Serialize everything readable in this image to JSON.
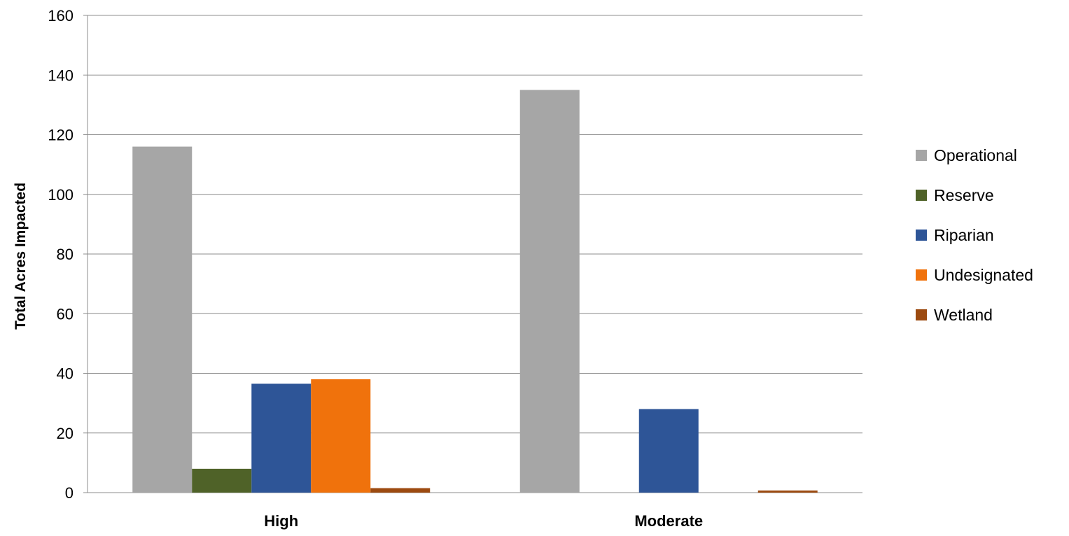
{
  "chart_data": {
    "type": "bar",
    "title": "",
    "xlabel": "",
    "ylabel": "Total Acres Impacted",
    "ylim": [
      0,
      160
    ],
    "yticks": [
      0,
      20,
      40,
      60,
      80,
      100,
      120,
      140,
      160
    ],
    "grid": true,
    "legend_position": "right",
    "categories": [
      "High",
      "Moderate"
    ],
    "series": [
      {
        "name": "Operational",
        "color": "#A6A6A6",
        "values": [
          116,
          135
        ]
      },
      {
        "name": "Reserve",
        "color": "#4F6228",
        "values": [
          8,
          0
        ]
      },
      {
        "name": "Riparian",
        "color": "#2E5597",
        "values": [
          36.5,
          28
        ]
      },
      {
        "name": "Undesignated",
        "color": "#F0720C",
        "values": [
          38,
          0
        ]
      },
      {
        "name": "Wetland",
        "color": "#9C4A10",
        "values": [
          1.5,
          0.7
        ]
      }
    ]
  }
}
